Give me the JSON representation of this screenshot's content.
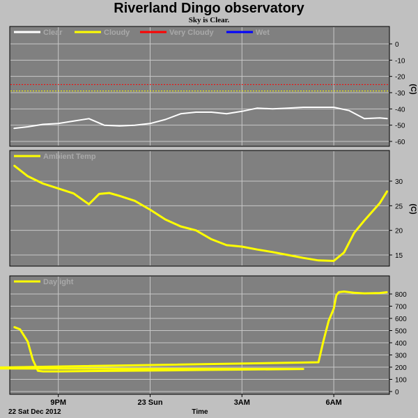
{
  "header": {
    "title": "Riverland Dingo observatory",
    "subtitle": "Sky is Clear."
  },
  "footer": {
    "date": "22 Sat Dec 2012",
    "xlabel": "Time"
  },
  "x_ticks": [
    "9PM",
    "23 Sun",
    "3AM",
    "6AM"
  ],
  "colors": {
    "background": "#c0c0c0",
    "plot": "#808080",
    "grid": "#c8c8c8",
    "clear": "#ffffff",
    "cloudy": "#ffff00",
    "very_cloudy": "#ff0000",
    "wet": "#0000ff",
    "ambient": "#ffff00",
    "daylight": "#ffff00"
  },
  "chart_data": [
    {
      "type": "line",
      "panel": "sky",
      "legend": [
        "Clear",
        "Cloudy",
        "Very Cloudy",
        "Wet"
      ],
      "ylabel": "(C)",
      "ylim": [
        -60,
        10
      ],
      "yticks": [
        0,
        -10,
        -20,
        -30,
        -40,
        -50,
        -60
      ],
      "thresholds": [
        {
          "name": "Very Cloudy",
          "value": -25
        },
        {
          "name": "Cloudy",
          "value": -29
        }
      ],
      "series": [
        {
          "name": "Clear",
          "x": [
            "7:33PM",
            "8:00PM",
            "8:30PM",
            "9:00PM",
            "9:30PM",
            "10:00PM",
            "10:30PM",
            "11:00PM",
            "11:30PM",
            "12:00AM",
            "12:30AM",
            "1:00AM",
            "1:30AM",
            "2:00AM",
            "2:30AM",
            "3:00AM",
            "3:30AM",
            "4:00AM",
            "4:30AM",
            "5:00AM",
            "5:30AM",
            "6:00AM",
            "6:30AM",
            "7:00AM",
            "7:30AM",
            "7:45AM"
          ],
          "values": [
            -52,
            -51,
            -49.5,
            -49,
            -47.5,
            -46,
            -50,
            -50.5,
            -50,
            -49,
            -46.5,
            -43,
            -42,
            -42,
            -43,
            -41.5,
            -39.5,
            -40,
            -39.5,
            -39,
            -39,
            -39,
            -41,
            -46,
            -45.5,
            -46
          ]
        }
      ]
    },
    {
      "type": "line",
      "panel": "ambient",
      "legend": [
        "Ambient Temp"
      ],
      "ylabel": "(C)",
      "ylim": [
        12,
        35
      ],
      "yticks": [
        30,
        25,
        20,
        15
      ],
      "series": [
        {
          "name": "Ambient Temp",
          "x": [
            "7:33PM",
            "8:00PM",
            "8:30PM",
            "9:00PM",
            "9:30PM",
            "10:00PM",
            "10:20PM",
            "10:40PM",
            "11:00PM",
            "11:30PM",
            "12:00AM",
            "12:30AM",
            "1:00AM",
            "1:30AM",
            "2:00AM",
            "2:30AM",
            "3:00AM",
            "3:30AM",
            "4:00AM",
            "4:30AM",
            "5:00AM",
            "5:30AM",
            "6:00AM",
            "6:20AM",
            "6:40AM",
            "7:00AM",
            "7:30AM",
            "7:45AM"
          ],
          "values": [
            33.2,
            31,
            29.5,
            28.5,
            27.5,
            25.3,
            27.4,
            27.6,
            27,
            26,
            24.2,
            22.2,
            20.8,
            20,
            18.2,
            17,
            16.7,
            16.1,
            15.6,
            15,
            14.4,
            13.9,
            13.8,
            15.5,
            19.5,
            22,
            25.5,
            28
          ]
        }
      ]
    },
    {
      "type": "line",
      "panel": "daylight",
      "legend": [
        "Daylight"
      ],
      "ylabel": "",
      "ylim": [
        0,
        880
      ],
      "yticks": [
        800,
        700,
        600,
        500,
        400,
        300,
        200,
        100,
        0
      ],
      "series": [
        {
          "name": "Daylight",
          "x": [
            "7:33PM",
            "7:45PM",
            "8:00PM",
            "8:10PM",
            "8:20PM",
            "8:30PM",
            "9:00PM",
            "10:00PM",
            "11:00PM",
            "12:00AM",
            "1:00AM",
            "2:00AM",
            "3:00AM",
            "4:00AM",
            "5:00AM",
            "5:20PM",
            "5:30AM",
            "5:40AM",
            "5:50AM",
            "6:00AM",
            "6:05AM",
            "6:10AM",
            "6:20AM",
            "6:40AM",
            "7:00AM",
            "7:30AM",
            "7:45AM"
          ],
          "values": [
            530,
            510,
            410,
            260,
            170,
            165,
            165,
            168,
            170,
            172,
            175,
            178,
            180,
            182,
            185,
            190,
            240,
            420,
            580,
            680,
            790,
            815,
            820,
            810,
            805,
            808,
            815
          ]
        }
      ]
    }
  ]
}
